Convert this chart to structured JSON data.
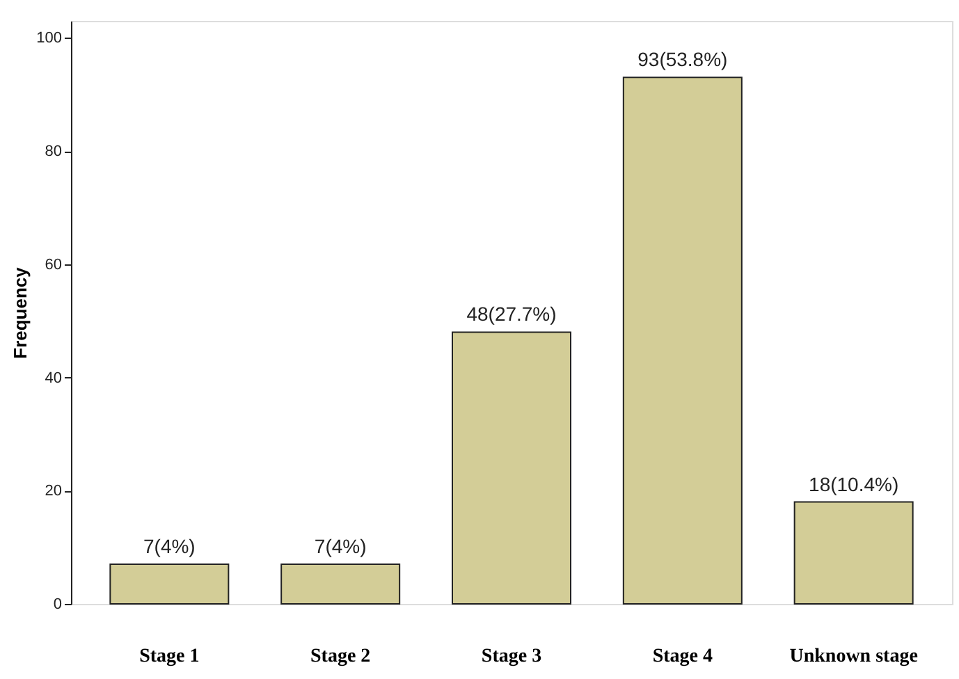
{
  "chart_data": {
    "type": "bar",
    "ylabel": "Frequency",
    "categories": [
      "Stage 1",
      "Stage 2",
      "Stage 3",
      "Stage 4",
      "Unknown stage"
    ],
    "values": [
      7,
      7,
      48,
      93,
      18
    ],
    "value_labels": [
      "7(4%)",
      "7(4%)",
      "48(27.7%)",
      "93(53.8%)",
      "18(10.4%)"
    ],
    "color": "#d3cd97",
    "ylim": [
      0,
      103
    ],
    "yticks": [
      0,
      20,
      40,
      60,
      80,
      100
    ],
    "grid": false
  }
}
